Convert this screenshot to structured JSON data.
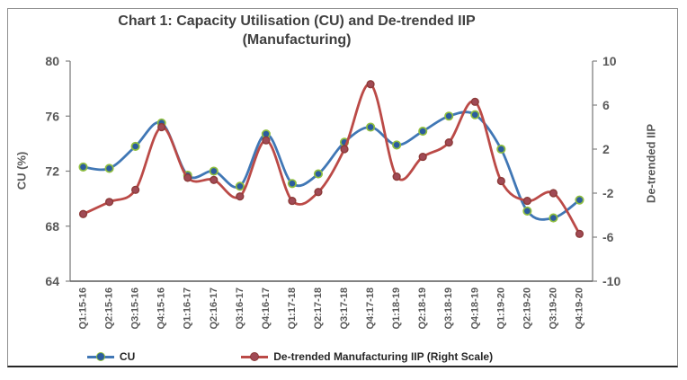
{
  "chart_data": {
    "type": "line",
    "title_line1": "Chart 1: Capacity Utilisation (CU) and De-trended IIP",
    "title_line2": "(Manufacturing)",
    "smooth": true,
    "grid": false,
    "legend_position": "bottom",
    "categories": [
      "Q1:15-16",
      "Q2:15-16",
      "Q3:15-16",
      "Q4:15-16",
      "Q1:16-17",
      "Q2:16-17",
      "Q3:16-17",
      "Q4:16-17",
      "Q1:17-18",
      "Q2:17-18",
      "Q3:17-18",
      "Q4:17-18",
      "Q1:18-19",
      "Q2:18-19",
      "Q3:18-19",
      "Q4:18-19",
      "Q1:19-20",
      "Q2:19-20",
      "Q3:19-20",
      "Q4:19-20"
    ],
    "series": [
      {
        "name": "CU",
        "axis": "left",
        "color": "#4077B5",
        "marker_fill": "#2B5C9E",
        "marker_stroke": "#8FBE3F",
        "values": [
          72.3,
          72.2,
          73.8,
          75.5,
          71.7,
          72.0,
          70.9,
          74.7,
          71.1,
          71.8,
          74.1,
          75.2,
          73.9,
          74.9,
          76.0,
          76.1,
          73.6,
          69.1,
          68.6,
          69.9
        ]
      },
      {
        "name": "De-trended Manufacturing IIP (Right Scale)",
        "axis": "right",
        "color": "#BB4A47",
        "marker_fill": "#A04A55",
        "marker_stroke": "#8C3A38",
        "values": [
          -3.9,
          -2.8,
          -1.7,
          4.0,
          -0.6,
          -0.8,
          -2.3,
          2.8,
          -2.7,
          -1.9,
          2.0,
          7.9,
          -0.5,
          1.3,
          2.6,
          6.3,
          -0.9,
          -2.7,
          -2.0,
          -5.7
        ]
      }
    ],
    "left_axis": {
      "label": "CU (%)",
      "min": 64,
      "max": 80,
      "ticks": [
        80,
        76,
        72,
        68,
        64
      ]
    },
    "right_axis": {
      "label": "De-trended IIP",
      "min": -10,
      "max": 10,
      "ticks": [
        10,
        6,
        2,
        -2,
        -6,
        -10
      ]
    }
  }
}
